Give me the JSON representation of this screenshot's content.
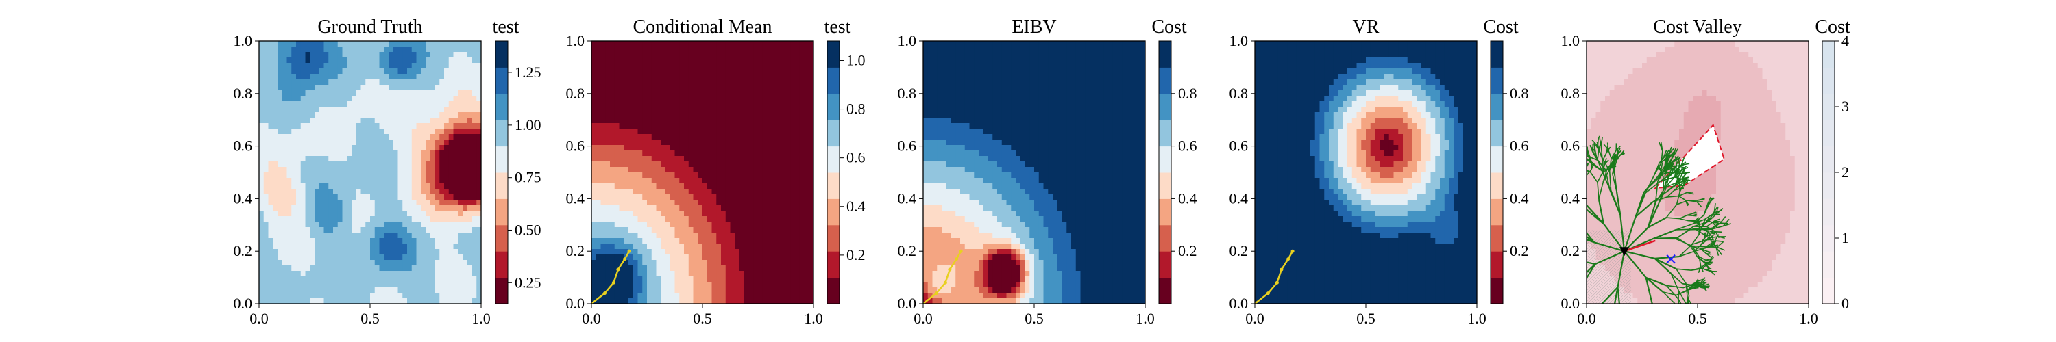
{
  "chart_data": [
    {
      "type": "heatmap",
      "title": "Ground Truth",
      "colorbar_label": "test",
      "colormap": "RdBu_r",
      "xlim": [
        0,
        1
      ],
      "ylim": [
        0,
        1
      ],
      "xticks": [
        "0.0",
        "0.5",
        "1.0"
      ],
      "yticks": [
        "0.0",
        "0.2",
        "0.4",
        "0.6",
        "0.8",
        "1.0"
      ],
      "cbar_range": [
        0.15,
        1.4
      ],
      "cbar_ticks": [
        0.25,
        0.5,
        0.75,
        1.0,
        1.25
      ],
      "cbar_tick_labels": [
        "0.25",
        "0.50",
        "0.75",
        "1.00",
        "1.25"
      ],
      "description_regions": [
        {
          "x": 0.22,
          "y": 0.95,
          "value": 1.38
        },
        {
          "x": 0.63,
          "y": 0.93,
          "value": 1.3
        },
        {
          "x": 0.6,
          "y": 0.2,
          "value": 1.3
        },
        {
          "x": 0.3,
          "y": 0.35,
          "value": 1.2
        },
        {
          "x": 0.12,
          "y": 0.4,
          "value": 0.8
        },
        {
          "x": 0.5,
          "y": 0.82,
          "value": 1.05
        },
        {
          "x": 0.94,
          "y": 0.52,
          "value": 0.18
        }
      ]
    },
    {
      "type": "heatmap",
      "title": "Conditional Mean",
      "colorbar_label": "test",
      "colormap": "RdBu_r",
      "xlim": [
        0,
        1
      ],
      "ylim": [
        0,
        1
      ],
      "xticks": [
        "0.0",
        "0.5",
        "1.0"
      ],
      "yticks": [
        "0.0",
        "0.2",
        "0.4",
        "0.6",
        "0.8",
        "1.0"
      ],
      "cbar_range": [
        0.0,
        1.08
      ],
      "cbar_ticks": [
        0.2,
        0.4,
        0.6,
        0.8,
        1.0
      ],
      "cbar_tick_labels": [
        "0.2",
        "0.4",
        "0.6",
        "0.8",
        "1.0"
      ],
      "path": [
        [
          0.0,
          0.0
        ],
        [
          0.06,
          0.04
        ],
        [
          0.1,
          0.08
        ],
        [
          0.12,
          0.13
        ],
        [
          0.15,
          0.17
        ],
        [
          0.17,
          0.2
        ]
      ]
    },
    {
      "type": "heatmap",
      "title": "EIBV",
      "colorbar_label": "Cost",
      "colormap": "RdBu_r",
      "xlim": [
        0,
        1
      ],
      "ylim": [
        0,
        1
      ],
      "xticks": [
        "0.0",
        "0.5",
        "1.0"
      ],
      "yticks": [
        "0.0",
        "0.2",
        "0.4",
        "0.6",
        "0.8",
        "1.0"
      ],
      "cbar_range": [
        0.0,
        1.0
      ],
      "cbar_ticks": [
        0.2,
        0.4,
        0.6,
        0.8
      ],
      "cbar_tick_labels": [
        "0.2",
        "0.4",
        "0.6",
        "0.8"
      ],
      "path": [
        [
          0.0,
          0.0
        ],
        [
          0.06,
          0.04
        ],
        [
          0.1,
          0.08
        ],
        [
          0.12,
          0.13
        ],
        [
          0.15,
          0.17
        ],
        [
          0.17,
          0.2
        ]
      ]
    },
    {
      "type": "heatmap",
      "title": "VR",
      "colorbar_label": "Cost",
      "colormap": "RdBu_r",
      "xlim": [
        0,
        1
      ],
      "ylim": [
        0,
        1
      ],
      "xticks": [
        "0.0",
        "0.5",
        "1.0"
      ],
      "yticks": [
        "0.0",
        "0.2",
        "0.4",
        "0.6",
        "0.8",
        "1.0"
      ],
      "cbar_range": [
        0.0,
        1.0
      ],
      "cbar_ticks": [
        0.2,
        0.4,
        0.6,
        0.8
      ],
      "cbar_tick_labels": [
        "0.2",
        "0.4",
        "0.6",
        "0.8"
      ],
      "path": [
        [
          0.0,
          0.0
        ],
        [
          0.06,
          0.04
        ],
        [
          0.1,
          0.08
        ],
        [
          0.12,
          0.13
        ],
        [
          0.15,
          0.17
        ],
        [
          0.17,
          0.2
        ]
      ]
    },
    {
      "type": "heatmap",
      "title": "Cost Valley",
      "colorbar_label": "Cost",
      "colormap": "RdBu_r",
      "xlim": [
        0,
        1
      ],
      "ylim": [
        0,
        1
      ],
      "xticks": [
        "0.0",
        "0.5",
        "1.0"
      ],
      "yticks": [
        "0.0",
        "0.2",
        "0.4",
        "0.6",
        "0.8",
        "1.0"
      ],
      "cbar_range": [
        0,
        4
      ],
      "cbar_ticks": [
        0,
        1,
        2,
        3,
        4
      ],
      "cbar_tick_labels": [
        "0",
        "1",
        "2",
        "3",
        "4"
      ],
      "start_point": [
        0.17,
        0.2
      ],
      "target_point": [
        0.38,
        0.17
      ],
      "obstacle_polygon": [
        [
          0.31,
          0.44
        ],
        [
          0.57,
          0.68
        ],
        [
          0.62,
          0.55
        ],
        [
          0.44,
          0.45
        ]
      ],
      "tree_color": "#1a7a1a"
    }
  ]
}
